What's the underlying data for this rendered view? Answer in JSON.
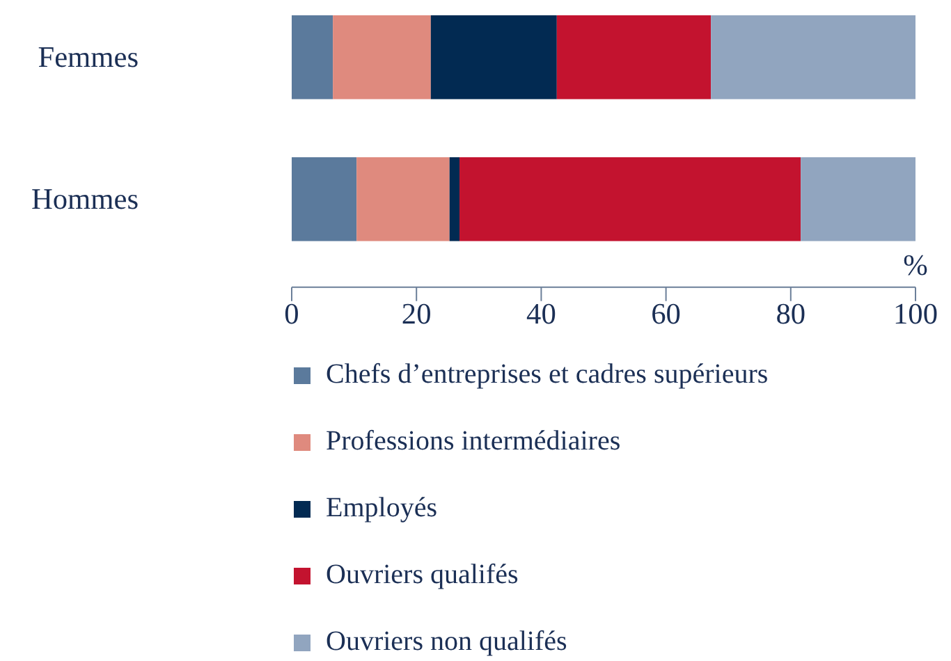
{
  "chart_data": {
    "type": "bar",
    "orientation": "horizontal",
    "stacked": true,
    "categories": [
      "Femmes",
      "Hommes"
    ],
    "xlabel": "%",
    "xlim": [
      0,
      100
    ],
    "xticks": [
      0,
      20,
      40,
      60,
      80,
      100
    ],
    "grid": false,
    "legend": "bottom",
    "series": [
      {
        "name": "Chefs d’entreprises et cadres supérieurs",
        "color": "#5b7a9c",
        "values": [
          6.6,
          10.4
        ]
      },
      {
        "name": "Professions intermédiaires",
        "color": "#df8a7e",
        "values": [
          15.7,
          14.9
        ]
      },
      {
        "name": "Employés",
        "color": "#022a52",
        "values": [
          20.2,
          1.6
        ]
      },
      {
        "name": "Ouvriers qualifés",
        "color": "#c3132f",
        "values": [
          24.7,
          54.7
        ]
      },
      {
        "name": "Ouvriers non qualifés",
        "color": "#91a5bf",
        "values": [
          32.8,
          18.4
        ]
      }
    ]
  }
}
